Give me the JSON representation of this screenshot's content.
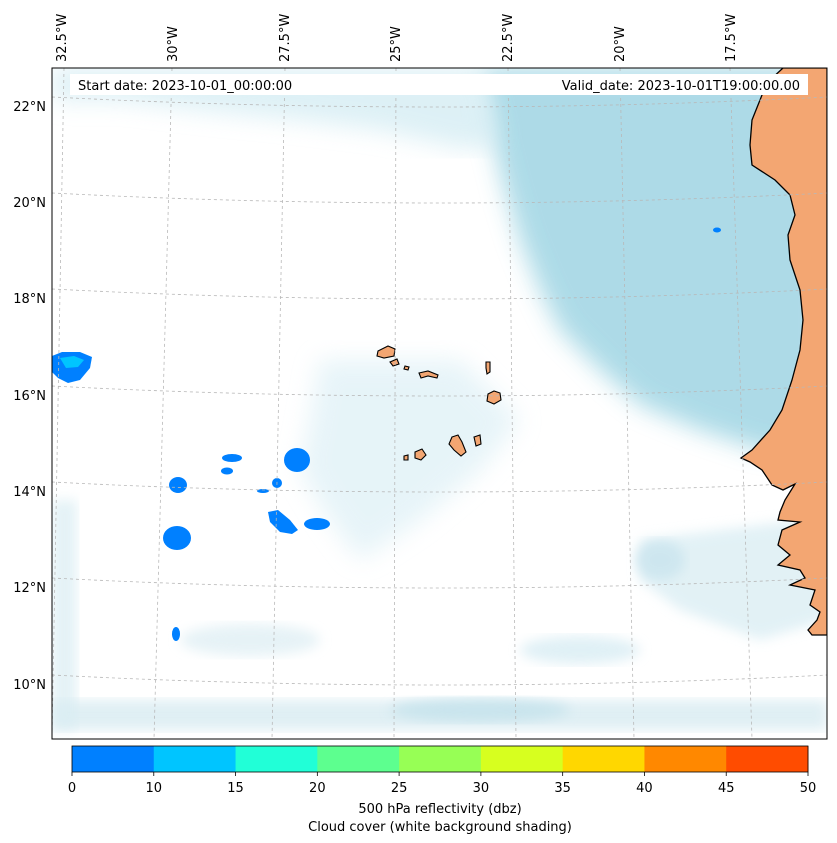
{
  "header": {
    "start_date": "Start date: 2023-10-01_00:00:00",
    "valid_date": "Valid_date: 2023-10-01T19:00:00.00"
  },
  "axes": {
    "lon_labels": [
      "32.5°W",
      "30°W",
      "27.5°W",
      "25°W",
      "22.5°W",
      "20°W",
      "17.5°W"
    ],
    "lat_labels": [
      "22°N",
      "20°N",
      "18°N",
      "16°N",
      "14°N",
      "12°N",
      "10°N"
    ]
  },
  "colorbar": {
    "ticks": [
      "0",
      "10",
      "15",
      "20",
      "25",
      "30",
      "35",
      "40",
      "45",
      "50"
    ],
    "colors": [
      "#0080ff",
      "#00c5ff",
      "#21ffd7",
      "#5dff8f",
      "#97ff55",
      "#d7ff1f",
      "#ffd700",
      "#ff8800",
      "#ff4c00"
    ],
    "label_line1": "500 hPa reflectivity (dbz)",
    "label_line2": "Cloud cover (white background shading)"
  },
  "colors": {
    "cloud": "#a9d9e6",
    "land": "#f3a672",
    "reflectivity": "#0080ff",
    "reflectivity_core": "#00c5ff"
  }
}
